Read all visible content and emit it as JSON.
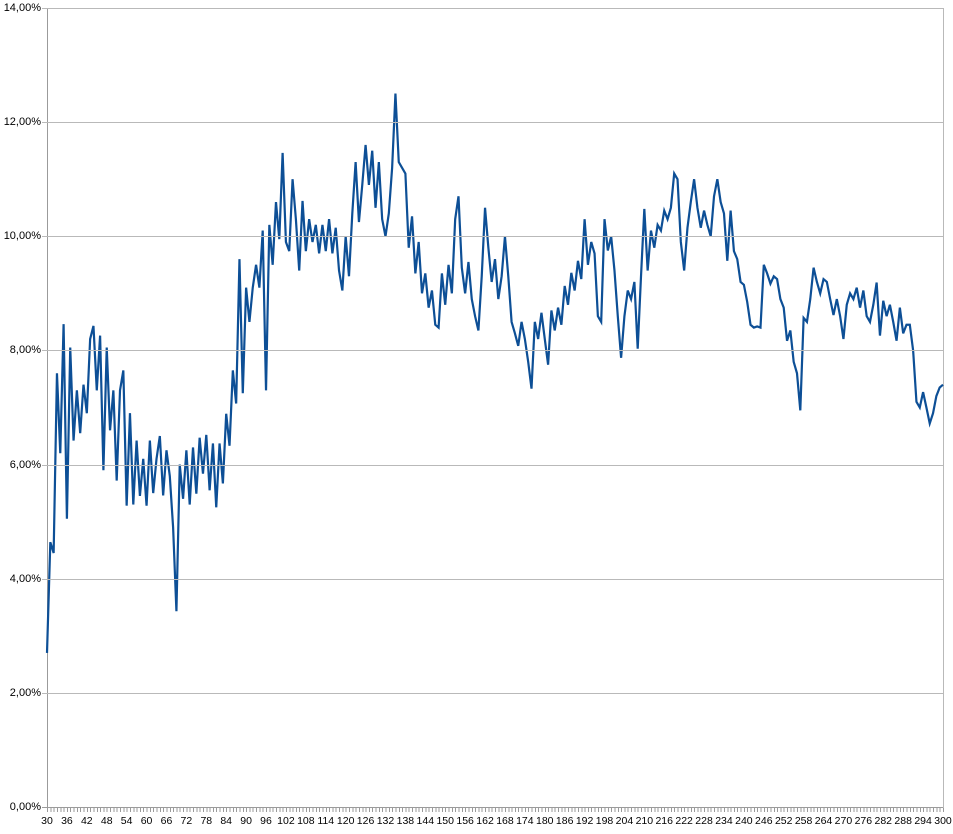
{
  "page": {
    "background": "#ffffff"
  },
  "colors": {
    "series_line": "#0d4f96",
    "gridline": "#b9b9b9",
    "axis": "#9b9b9b",
    "label_text": "#000000"
  },
  "chart_data": {
    "type": "line",
    "title": "",
    "xlabel": "",
    "ylabel": "",
    "legend": "none",
    "grid": "horizontal-major",
    "x_start": 30,
    "x_step": 1,
    "x_end": 300,
    "x_tick_interval": 6,
    "x_tick_labels": [
      "30",
      "36",
      "42",
      "48",
      "54",
      "60",
      "66",
      "72",
      "78",
      "84",
      "90",
      "96",
      "102",
      "108",
      "114",
      "120",
      "126",
      "132",
      "138",
      "144",
      "150",
      "156",
      "162",
      "168",
      "174",
      "180",
      "186",
      "192",
      "198",
      "204",
      "210",
      "216",
      "222",
      "228",
      "234",
      "240",
      "246",
      "252",
      "258",
      "264",
      "270",
      "276",
      "282",
      "288",
      "294",
      "300"
    ],
    "ylim": [
      0,
      14
    ],
    "y_major_step": 2,
    "y_tick_labels_top_to_bottom": [
      "14,00%",
      "12,00%",
      "10,00%",
      "8,00%",
      "6,00%",
      "4,00%",
      "2,00%",
      "0,00%"
    ],
    "series": [
      {
        "name": "series-1",
        "color": "#0d4f96",
        "values": [
          2.7,
          4.64,
          4.45,
          7.6,
          6.2,
          8.46,
          5.05,
          8.05,
          6.42,
          7.3,
          6.55,
          7.4,
          6.9,
          8.2,
          8.43,
          7.3,
          8.26,
          5.9,
          8.05,
          6.6,
          7.3,
          5.72,
          7.3,
          7.65,
          5.28,
          6.9,
          5.3,
          6.42,
          5.45,
          6.1,
          5.28,
          6.42,
          5.5,
          6.1,
          6.5,
          5.46,
          6.25,
          5.8,
          4.9,
          3.43,
          6.0,
          5.4,
          6.25,
          5.3,
          6.3,
          5.49,
          6.47,
          5.84,
          6.52,
          5.55,
          6.37,
          5.25,
          6.37,
          5.67,
          6.89,
          6.33,
          7.65,
          7.07,
          9.6,
          7.25,
          9.1,
          8.5,
          9.1,
          9.5,
          9.1,
          10.1,
          7.3,
          10.2,
          9.5,
          10.6,
          9.95,
          11.46,
          9.9,
          9.74,
          11.0,
          10.3,
          9.4,
          10.62,
          9.74,
          10.3,
          9.9,
          10.2,
          9.7,
          10.2,
          9.74,
          10.3,
          9.7,
          10.15,
          9.4,
          9.05,
          10.0,
          9.3,
          10.4,
          11.3,
          10.25,
          10.9,
          11.6,
          10.9,
          11.5,
          10.5,
          11.3,
          10.3,
          10.0,
          10.4,
          11.2,
          12.5,
          11.3,
          11.2,
          11.1,
          9.8,
          10.35,
          9.35,
          9.9,
          9.0,
          9.35,
          8.75,
          9.05,
          8.45,
          8.4,
          9.35,
          8.8,
          9.5,
          9.0,
          10.3,
          10.7,
          9.45,
          9.0,
          9.55,
          8.9,
          8.6,
          8.35,
          9.3,
          10.5,
          9.8,
          9.2,
          9.6,
          8.9,
          9.3,
          10.0,
          9.3,
          8.5,
          8.3,
          8.08,
          8.5,
          8.2,
          7.8,
          7.33,
          8.5,
          8.2,
          8.66,
          8.2,
          7.75,
          8.7,
          8.35,
          8.75,
          8.45,
          9.13,
          8.8,
          9.36,
          9.05,
          9.57,
          9.25,
          10.3,
          9.5,
          9.9,
          9.7,
          8.6,
          8.5,
          10.3,
          9.75,
          10.0,
          9.4,
          8.6,
          7.87,
          8.6,
          9.05,
          8.9,
          9.2,
          8.03,
          9.3,
          10.48,
          9.4,
          10.1,
          9.8,
          10.2,
          10.1,
          10.45,
          10.3,
          10.5,
          11.1,
          11.0,
          9.9,
          9.4,
          10.15,
          10.6,
          11.0,
          10.5,
          10.15,
          10.45,
          10.2,
          10.0,
          10.7,
          11.0,
          10.6,
          10.4,
          9.57,
          10.45,
          9.74,
          9.6,
          9.2,
          9.15,
          8.85,
          8.45,
          8.4,
          8.42,
          8.4,
          9.5,
          9.35,
          9.17,
          9.3,
          9.25,
          8.9,
          8.75,
          8.17,
          8.35,
          7.8,
          7.6,
          6.95,
          8.57,
          8.5,
          8.9,
          9.45,
          9.2,
          9.0,
          9.25,
          9.2,
          8.9,
          8.62,
          8.9,
          8.6,
          8.2,
          8.8,
          9.0,
          8.9,
          9.1,
          8.75,
          9.05,
          8.6,
          8.5,
          8.8,
          9.19,
          8.26,
          8.87,
          8.6,
          8.8,
          8.5,
          8.17,
          8.75,
          8.3,
          8.45,
          8.45,
          8.0,
          7.1,
          7.0,
          7.27,
          7.0,
          6.72,
          6.9,
          7.2,
          7.35,
          7.4
        ]
      }
    ]
  }
}
